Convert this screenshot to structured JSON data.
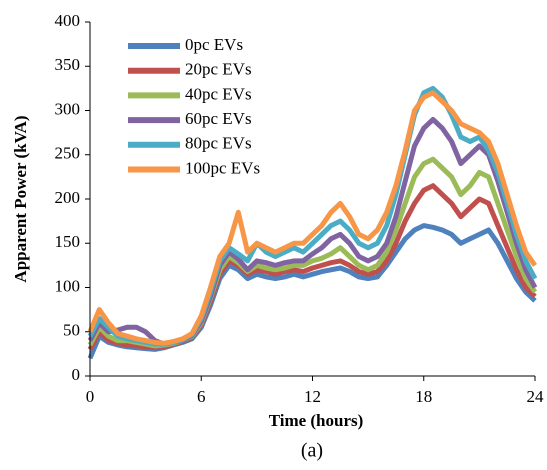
{
  "chart_data": {
    "type": "line",
    "caption": "(a)",
    "x_label": "Time (hours)",
    "y_label": "Apparent Power (kVA)",
    "xlim": [
      0,
      24
    ],
    "xticks": [
      0,
      6,
      12,
      18,
      24
    ],
    "ylim": [
      0,
      400
    ],
    "yticks": [
      0,
      50,
      100,
      150,
      200,
      250,
      300,
      350,
      400
    ],
    "grid": false,
    "x": [
      0,
      0.5,
      1,
      1.5,
      2,
      2.5,
      3,
      3.5,
      4,
      4.5,
      5,
      5.5,
      6,
      6.5,
      7,
      7.5,
      8,
      8.5,
      9,
      9.5,
      10,
      10.5,
      11,
      11.5,
      12,
      12.5,
      13,
      13.5,
      14,
      14.5,
      15,
      15.5,
      16,
      16.5,
      17,
      17.5,
      18,
      18.5,
      19,
      19.5,
      20,
      20.5,
      21,
      21.5,
      22,
      22.5,
      23,
      23.5,
      24
    ],
    "series": [
      {
        "name": "0pc EVs",
        "color": "#4F81BD",
        "values": [
          20,
          45,
          38,
          35,
          33,
          32,
          31,
          30,
          32,
          35,
          38,
          42,
          55,
          80,
          110,
          125,
          120,
          110,
          115,
          112,
          110,
          112,
          115,
          112,
          115,
          118,
          120,
          122,
          118,
          112,
          110,
          112,
          125,
          140,
          155,
          165,
          170,
          168,
          165,
          160,
          150,
          155,
          160,
          165,
          150,
          130,
          110,
          95,
          85
        ]
      },
      {
        "name": "20pc EVs",
        "color": "#C0504D",
        "values": [
          30,
          50,
          40,
          37,
          35,
          34,
          33,
          32,
          33,
          36,
          39,
          44,
          58,
          85,
          115,
          130,
          125,
          115,
          120,
          118,
          115,
          118,
          120,
          118,
          122,
          125,
          128,
          130,
          125,
          118,
          115,
          118,
          130,
          150,
          175,
          195,
          210,
          215,
          205,
          195,
          180,
          190,
          200,
          195,
          170,
          145,
          120,
          100,
          90
        ]
      },
      {
        "name": "40pc EVs",
        "color": "#9BBB59",
        "values": [
          35,
          55,
          45,
          40,
          40,
          38,
          36,
          34,
          35,
          37,
          40,
          45,
          60,
          88,
          120,
          135,
          128,
          118,
          125,
          122,
          120,
          122,
          125,
          125,
          130,
          133,
          138,
          145,
          135,
          125,
          120,
          125,
          140,
          165,
          195,
          225,
          240,
          245,
          235,
          225,
          205,
          215,
          230,
          225,
          195,
          165,
          135,
          110,
          95
        ]
      },
      {
        "name": "60pc EVs",
        "color": "#8064A2",
        "values": [
          40,
          60,
          50,
          52,
          55,
          55,
          50,
          40,
          36,
          38,
          40,
          46,
          62,
          90,
          125,
          140,
          132,
          120,
          130,
          128,
          125,
          128,
          130,
          130,
          138,
          145,
          155,
          160,
          150,
          135,
          130,
          135,
          150,
          180,
          220,
          260,
          280,
          290,
          280,
          265,
          240,
          250,
          260,
          250,
          220,
          185,
          150,
          120,
          100
        ]
      },
      {
        "name": "80pc EVs",
        "color": "#4BACC6",
        "values": [
          45,
          65,
          55,
          45,
          42,
          40,
          38,
          36,
          36,
          38,
          41,
          47,
          65,
          95,
          130,
          145,
          138,
          130,
          150,
          140,
          135,
          140,
          145,
          140,
          150,
          160,
          170,
          175,
          165,
          150,
          145,
          150,
          170,
          205,
          250,
          295,
          320,
          325,
          315,
          295,
          270,
          265,
          270,
          255,
          230,
          195,
          160,
          130,
          110
        ]
      },
      {
        "name": "100pc EVs",
        "color": "#F79646",
        "values": [
          50,
          75,
          60,
          48,
          45,
          42,
          40,
          38,
          37,
          39,
          42,
          48,
          68,
          100,
          135,
          150,
          185,
          140,
          150,
          145,
          140,
          145,
          150,
          150,
          160,
          170,
          185,
          195,
          180,
          160,
          155,
          165,
          185,
          215,
          255,
          300,
          315,
          320,
          310,
          300,
          285,
          280,
          275,
          265,
          240,
          205,
          170,
          140,
          125
        ]
      }
    ]
  }
}
